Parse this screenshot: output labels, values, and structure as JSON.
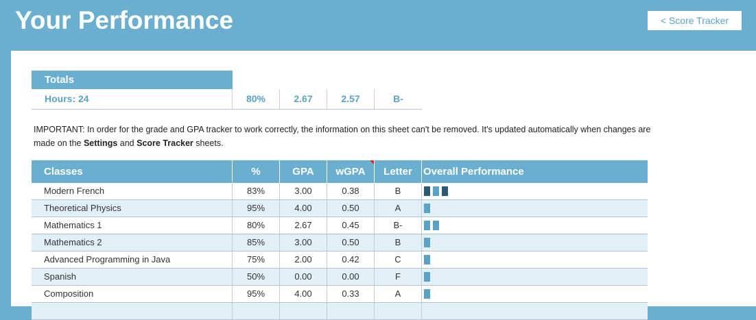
{
  "header": {
    "title": "Your Performance",
    "nav_button": "< Score Tracker"
  },
  "totals": {
    "label": "Totals",
    "hours": "Hours: 24",
    "percent": "80%",
    "gpa": "2.67",
    "wgpa": "2.57",
    "letter": "B-"
  },
  "note": {
    "prefix": "IMPORTANT: In order for the grade and GPA tracker to work correctly, the information on this sheet can't be removed. It's updated automatically when changes are made on the ",
    "settings": "Settings",
    "and": " and ",
    "score_tracker": "Score Tracker",
    "suffix": " sheets."
  },
  "classes": {
    "headers": [
      "Classes",
      "%",
      "GPA",
      "wGPA",
      "Letter",
      "Overall Performance"
    ],
    "rows": [
      {
        "name": "Modern French",
        "percent": "83%",
        "gpa": "3.00",
        "wgpa": "0.38",
        "letter": "B",
        "bars": [
          "dark",
          "light",
          "dark"
        ]
      },
      {
        "name": "Theoretical Physics",
        "percent": "95%",
        "gpa": "4.00",
        "wgpa": "0.50",
        "letter": "A",
        "bars": [
          "light"
        ]
      },
      {
        "name": "Mathematics 1",
        "percent": "80%",
        "gpa": "2.67",
        "wgpa": "0.45",
        "letter": "B-",
        "bars": [
          "light",
          "light"
        ]
      },
      {
        "name": "Mathematics 2",
        "percent": "85%",
        "gpa": "3.00",
        "wgpa": "0.50",
        "letter": "B",
        "bars": [
          "light"
        ]
      },
      {
        "name": "Advanced Programming in Java",
        "percent": "75%",
        "gpa": "2.00",
        "wgpa": "0.42",
        "letter": "C",
        "bars": [
          "light"
        ]
      },
      {
        "name": "Spanish",
        "percent": "50%",
        "gpa": "0.00",
        "wgpa": "0.00",
        "letter": "F",
        "bars": [
          "light"
        ]
      },
      {
        "name": "Composition",
        "percent": "95%",
        "gpa": "4.00",
        "wgpa": "0.33",
        "letter": "A",
        "bars": [
          "light"
        ]
      },
      {
        "name": "",
        "percent": "",
        "gpa": "",
        "wgpa": "",
        "letter": "",
        "bars": []
      }
    ]
  },
  "colors": {
    "accent": "#6aafd0",
    "accent_text": "#5aa2c6",
    "bar_dark": "#2b5a74",
    "bar_light": "#5aa2c6",
    "row_alt": "#e1eff7",
    "comment_marker": "#e0242b"
  }
}
